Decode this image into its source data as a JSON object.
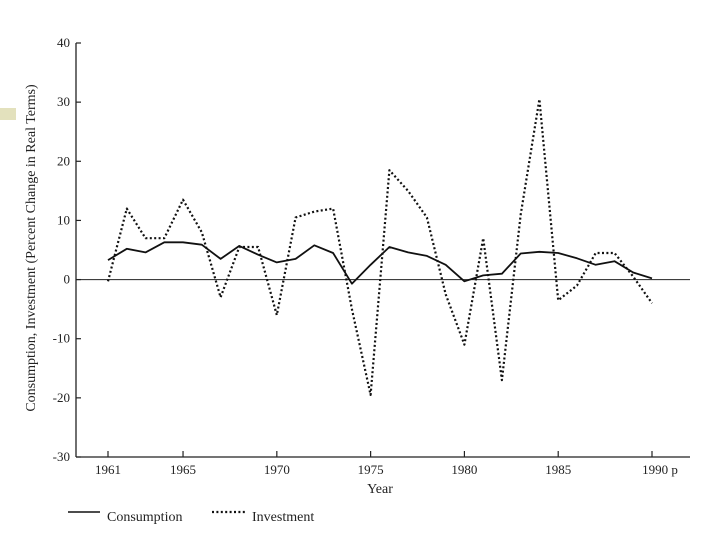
{
  "chart_data": {
    "type": "line",
    "title": "",
    "xlabel": "Year",
    "ylabel": "Consumption, Investment (Percent Change in Real Terms)",
    "xlim": [
      1961,
      1990
    ],
    "ylim": [
      -30,
      40
    ],
    "x_ticks": [
      {
        "value": 1961,
        "label": "1961"
      },
      {
        "value": 1965,
        "label": "1965"
      },
      {
        "value": 1970,
        "label": "1970"
      },
      {
        "value": 1975,
        "label": "1975"
      },
      {
        "value": 1980,
        "label": "1980"
      },
      {
        "value": 1985,
        "label": "1985"
      },
      {
        "value": 1990,
        "label": "1990 p"
      }
    ],
    "y_ticks": [
      {
        "value": 40,
        "label": "40"
      },
      {
        "value": 30,
        "label": "30"
      },
      {
        "value": 20,
        "label": "20"
      },
      {
        "value": 10,
        "label": "10"
      },
      {
        "value": 0,
        "label": "0"
      },
      {
        "value": -10,
        "label": "-10"
      },
      {
        "value": -20,
        "label": "-20"
      },
      {
        "value": -30,
        "label": "-30"
      }
    ],
    "zero_line": true,
    "grid": false,
    "legend_position": "bottom-left",
    "x": [
      1961,
      1962,
      1963,
      1964,
      1965,
      1966,
      1967,
      1968,
      1969,
      1970,
      1971,
      1972,
      1973,
      1974,
      1975,
      1976,
      1977,
      1978,
      1979,
      1980,
      1981,
      1982,
      1983,
      1984,
      1985,
      1986,
      1987,
      1988,
      1989,
      1990
    ],
    "series": [
      {
        "name": "Consumption",
        "style": "solid",
        "values": [
          3.3,
          5.2,
          4.6,
          6.3,
          6.3,
          5.9,
          3.5,
          5.7,
          4.2,
          2.9,
          3.5,
          5.8,
          4.5,
          -0.7,
          2.5,
          5.5,
          4.6,
          4.0,
          2.5,
          -0.3,
          0.7,
          1.0,
          4.4,
          4.7,
          4.5,
          3.6,
          2.5,
          3.1,
          1.2,
          0.2
        ]
      },
      {
        "name": "Investment",
        "style": "dotted",
        "values": [
          -0.3,
          12.0,
          7.0,
          7.0,
          13.5,
          8.0,
          -3.0,
          5.5,
          5.5,
          -6.0,
          10.5,
          11.5,
          12.0,
          -5.0,
          -19.5,
          18.5,
          15.0,
          10.5,
          -2.5,
          -11.0,
          7.0,
          -17.0,
          11.0,
          30.5,
          -3.5,
          -1.0,
          4.5,
          4.5,
          0.5,
          -4.0
        ]
      }
    ]
  }
}
